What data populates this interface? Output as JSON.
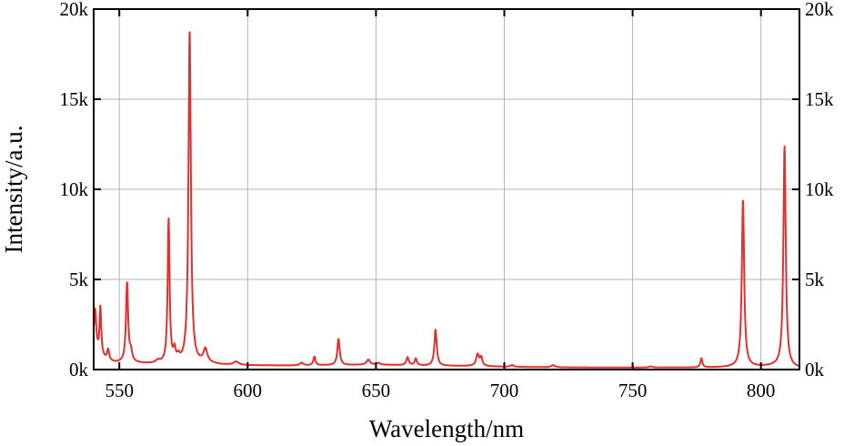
{
  "chart_data": {
    "type": "line",
    "title": "",
    "xlabel": "Wavelength/nm",
    "ylabel": "Intensity/a.u.",
    "xlim": [
      540,
      815
    ],
    "ylim": [
      0,
      20000
    ],
    "x_ticks": [
      550,
      600,
      650,
      700,
      750,
      800
    ],
    "x_tick_labels": [
      "550",
      "600",
      "650",
      "700",
      "750",
      "800"
    ],
    "y_ticks": [
      0,
      5000,
      10000,
      15000,
      20000
    ],
    "y_tick_labels": [
      "0k",
      "5k",
      "10k",
      "15k",
      "20k"
    ],
    "y_tick_labels_right": [
      "0k",
      "5k",
      "10k",
      "15k",
      "20k"
    ],
    "grid": true,
    "line_color": "#e0312f",
    "series": [
      {
        "baseline": [
          [
            540,
            1600
          ],
          [
            542,
            800
          ],
          [
            545,
            500
          ],
          [
            548,
            380
          ],
          [
            555,
            360
          ],
          [
            560,
            320
          ],
          [
            565,
            300
          ],
          [
            575,
            300
          ],
          [
            585,
            320
          ],
          [
            590,
            260
          ],
          [
            600,
            230
          ],
          [
            620,
            220
          ],
          [
            640,
            250
          ],
          [
            650,
            270
          ],
          [
            660,
            240
          ],
          [
            670,
            210
          ],
          [
            680,
            200
          ],
          [
            690,
            190
          ],
          [
            700,
            150
          ],
          [
            720,
            120
          ],
          [
            740,
            110
          ],
          [
            760,
            110
          ],
          [
            775,
            110
          ],
          [
            785,
            120
          ],
          [
            790,
            140
          ],
          [
            798,
            150
          ],
          [
            805,
            180
          ],
          [
            812,
            100
          ],
          [
            815,
            80
          ]
        ],
        "peaks": [
          {
            "center": 540.6,
            "height": 1900,
            "width": 0.45
          },
          {
            "center": 542.6,
            "height": 2700,
            "width": 0.4
          },
          {
            "center": 545.6,
            "height": 600,
            "width": 0.5
          },
          {
            "center": 553.0,
            "height": 4400,
            "width": 0.5
          },
          {
            "center": 554.5,
            "height": 500,
            "width": 0.6
          },
          {
            "center": 565.0,
            "height": 150,
            "width": 1.0
          },
          {
            "center": 569.2,
            "height": 7950,
            "width": 0.45
          },
          {
            "center": 571.5,
            "height": 650,
            "width": 0.5
          },
          {
            "center": 573.0,
            "height": 300,
            "width": 0.6
          },
          {
            "center": 577.4,
            "height": 18450,
            "width": 0.55
          },
          {
            "center": 583.5,
            "height": 750,
            "width": 0.9
          },
          {
            "center": 595.5,
            "height": 180,
            "width": 1.2
          },
          {
            "center": 621.0,
            "height": 150,
            "width": 0.8
          },
          {
            "center": 626.0,
            "height": 480,
            "width": 0.5
          },
          {
            "center": 635.4,
            "height": 1450,
            "width": 0.55
          },
          {
            "center": 647.0,
            "height": 280,
            "width": 0.8
          },
          {
            "center": 651.0,
            "height": 100,
            "width": 0.6
          },
          {
            "center": 662.3,
            "height": 450,
            "width": 0.55
          },
          {
            "center": 665.5,
            "height": 380,
            "width": 0.5
          },
          {
            "center": 673.2,
            "height": 2000,
            "width": 0.55
          },
          {
            "center": 689.6,
            "height": 650,
            "width": 0.7
          },
          {
            "center": 691.0,
            "height": 450,
            "width": 0.5
          },
          {
            "center": 703.0,
            "height": 100,
            "width": 0.8
          },
          {
            "center": 719.0,
            "height": 120,
            "width": 0.9
          },
          {
            "center": 757.0,
            "height": 60,
            "width": 0.8
          },
          {
            "center": 776.8,
            "height": 500,
            "width": 0.45
          },
          {
            "center": 793.0,
            "height": 9250,
            "width": 0.55
          },
          {
            "center": 809.2,
            "height": 12250,
            "width": 0.55
          }
        ]
      }
    ]
  }
}
